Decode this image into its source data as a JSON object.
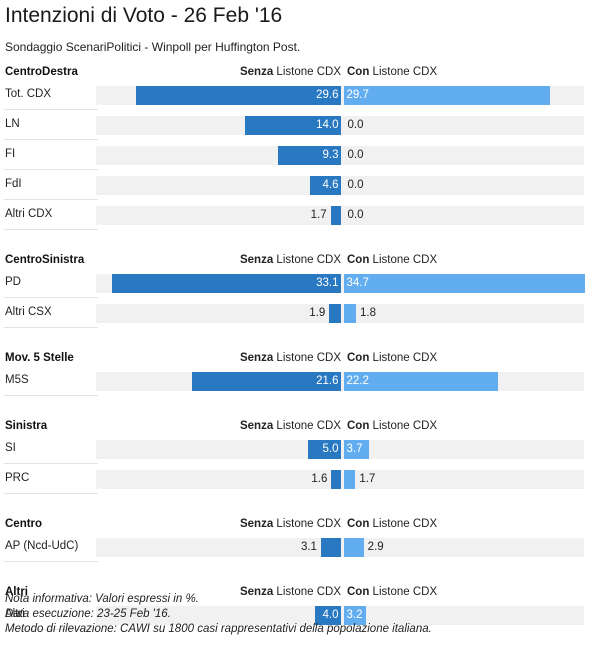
{
  "title": "Intenzioni di Voto - 26 Feb '16",
  "subtitle": "Sondaggio ScenariPolitici - Winpoll per Huffington Post.",
  "columns": {
    "left_bold": "Senza",
    "left_rest": " Listone CDX",
    "right_bold": "Con",
    "right_rest": " Listone CDX"
  },
  "colors": {
    "senza": "#2878c2",
    "con": "#62adef",
    "track": "#f1f1f1"
  },
  "notes": [
    "Nota informativa: Valori espressi in %.",
    "Data esecuzione: 23-25 Feb '16.",
    "Metodo di rilevazione: CAWI su 1800 casi rappresentativi della popolazione italiana."
  ],
  "chart_data": {
    "type": "bar",
    "orientation": "horizontal-diverging",
    "series_names": [
      "Senza Listone CDX",
      "Con Listone CDX"
    ],
    "groups": [
      {
        "name": "CentroDestra",
        "rows": [
          {
            "label": "Tot. CDX",
            "senza": 29.6,
            "con": 29.7,
            "senza_text": "29.6",
            "con_text": "29.7"
          },
          {
            "label": "LN",
            "senza": 14.0,
            "con": 0.0,
            "senza_text": "14.0",
            "con_text": "0.0"
          },
          {
            "label": "FI",
            "senza": 9.3,
            "con": 0.0,
            "senza_text": "9.3",
            "con_text": "0.0"
          },
          {
            "label": "FdI",
            "senza": 4.6,
            "con": 0.0,
            "senza_text": "4.6",
            "con_text": "0.0"
          },
          {
            "label": "Altri CDX",
            "senza": 1.7,
            "con": 0.0,
            "senza_text": "1.7",
            "con_text": "0.0"
          }
        ]
      },
      {
        "name": "CentroSinistra",
        "rows": [
          {
            "label": "PD",
            "senza": 33.1,
            "con": 34.7,
            "senza_text": "33.1",
            "con_text": "34.7"
          },
          {
            "label": "Altri CSX",
            "senza": 1.9,
            "con": 1.8,
            "senza_text": "1.9",
            "con_text": "1.8"
          }
        ]
      },
      {
        "name": "Mov. 5 Stelle",
        "rows": [
          {
            "label": "M5S",
            "senza": 21.6,
            "con": 22.2,
            "senza_text": "21.6",
            "con_text": "22.2"
          }
        ]
      },
      {
        "name": "Sinistra",
        "rows": [
          {
            "label": "SI",
            "senza": 5.0,
            "con": 3.7,
            "senza_text": "5.0",
            "con_text": "3.7"
          },
          {
            "label": "PRC",
            "senza": 1.6,
            "con": 1.7,
            "senza_text": "1.6",
            "con_text": "1.7"
          }
        ]
      },
      {
        "name": "Centro",
        "rows": [
          {
            "label": "AP (Ncd-UdC)",
            "senza": 3.1,
            "con": 2.9,
            "senza_text": "3.1",
            "con_text": "2.9"
          }
        ]
      },
      {
        "name": "Altri",
        "rows": [
          {
            "label": "Altri",
            "senza": 4.0,
            "con": 3.2,
            "senza_text": "4.0",
            "con_text": "3.2"
          }
        ]
      }
    ],
    "xlim": [
      -34.7,
      34.7
    ]
  }
}
